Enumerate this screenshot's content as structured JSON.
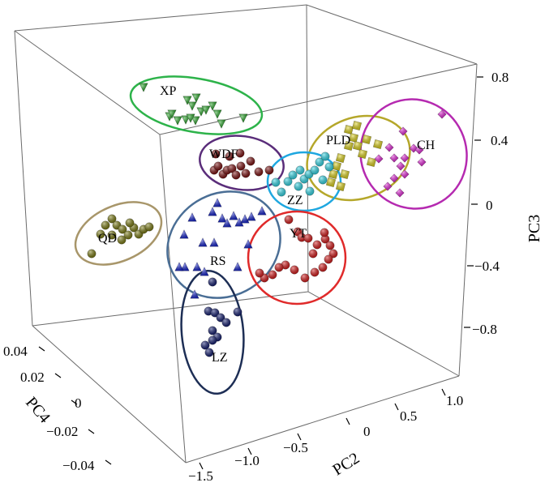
{
  "chart_data": {
    "type": "scatter",
    "title": "",
    "projection": "3d",
    "axes": {
      "z": {
        "label": "PC3",
        "ticks": [
          "0.8",
          "0.4",
          "0",
          "−0.4",
          "−0.8"
        ]
      },
      "y": {
        "label": "PC4",
        "ticks": [
          "0.04",
          "0.02",
          "0",
          "−0.02",
          "−0.04"
        ]
      },
      "x": {
        "label": "PC2",
        "ticks": [
          "−1.5",
          "−1.0",
          "−0.5",
          "0",
          "0.5",
          "1.0"
        ]
      }
    },
    "groups": [
      {
        "name": "XP",
        "color": "#1a9e1a",
        "marker": "triangle-down",
        "ellipse_color": "#2db34a"
      },
      {
        "name": "WDF",
        "color": "#7a0c0c",
        "marker": "circle",
        "ellipse_color": "#5a2d7a"
      },
      {
        "name": "PLD",
        "color": "#e3d823",
        "marker": "cube",
        "ellipse_color": "#b5a72a"
      },
      {
        "name": "CH",
        "color": "#e21fd6",
        "marker": "diamond",
        "ellipse_color": "#b52ab0"
      },
      {
        "name": "ZZ",
        "color": "#30d8e8",
        "marker": "circle",
        "ellipse_color": "#1ea7e0"
      },
      {
        "name": "QD",
        "color": "#7a7a10",
        "marker": "circle",
        "ellipse_color": "#a8966a"
      },
      {
        "name": "RS",
        "color": "#1a28d0",
        "marker": "triangle-up",
        "ellipse_color": "#4a6e95"
      },
      {
        "name": "YT",
        "color": "#d61818",
        "marker": "circle",
        "ellipse_color": "#e02a2a"
      },
      {
        "name": "LZ",
        "color": "#101a6e",
        "marker": "circle",
        "ellipse_color": "#1d2e55"
      }
    ]
  }
}
